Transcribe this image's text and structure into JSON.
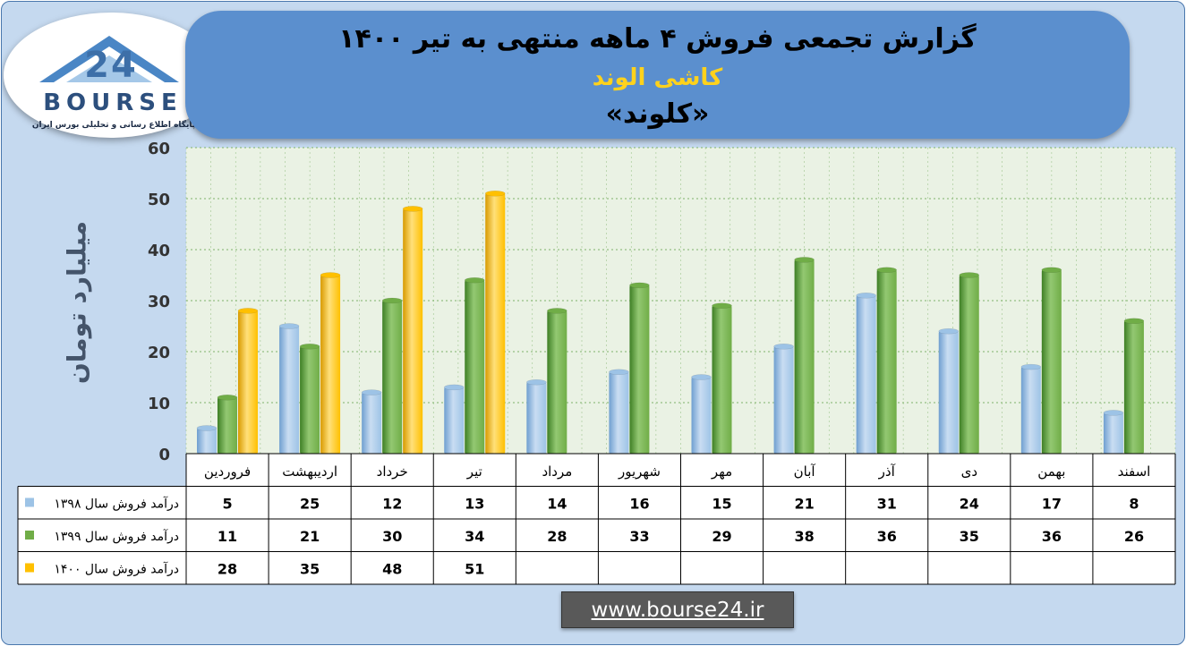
{
  "header": {
    "title_line1": "گزارش تجمعی فروش ۴ ماهه منتهی به تیر ۱۴۰۰",
    "title_line2": "کاشی الوند",
    "title_line3": "«کلوند»"
  },
  "logo": {
    "wordmark": "BOURSE",
    "tagline": "پایگاه اطلاع رسانی و تحلیلی بورس ایران",
    "mark_text": "24"
  },
  "footer": {
    "url": "www.bourse24.ir"
  },
  "colors": {
    "s1398": "#9dc3e6",
    "s1399": "#70ad47",
    "s1400": "#ffc000",
    "plot_bg": "#eaf2e4",
    "grid": "#7fb26a"
  },
  "chart_data": {
    "type": "bar",
    "ylabel": "میلیارد تومان",
    "xlabel": "",
    "ylim": [
      0,
      60
    ],
    "yticks": [
      0,
      10,
      20,
      30,
      40,
      50,
      60
    ],
    "grid": true,
    "categories": [
      "فروردین",
      "اردیبهشت",
      "خرداد",
      "تیر",
      "مرداد",
      "شهریور",
      "مهر",
      "آبان",
      "آذر",
      "دی",
      "بهمن",
      "اسفند"
    ],
    "series": [
      {
        "name": "درآمد فروش سال ۱۳۹۸",
        "color": "#9dc3e6",
        "values": [
          5,
          25,
          12,
          13,
          14,
          16,
          15,
          21,
          31,
          24,
          17,
          8
        ]
      },
      {
        "name": "درآمد فروش سال ۱۳۹۹",
        "color": "#70ad47",
        "values": [
          11,
          21,
          30,
          34,
          28,
          33,
          29,
          38,
          36,
          35,
          36,
          26
        ]
      },
      {
        "name": "درآمد فروش سال ۱۴۰۰",
        "color": "#ffc000",
        "values": [
          28,
          35,
          48,
          51,
          null,
          null,
          null,
          null,
          null,
          null,
          null,
          null
        ]
      }
    ]
  }
}
